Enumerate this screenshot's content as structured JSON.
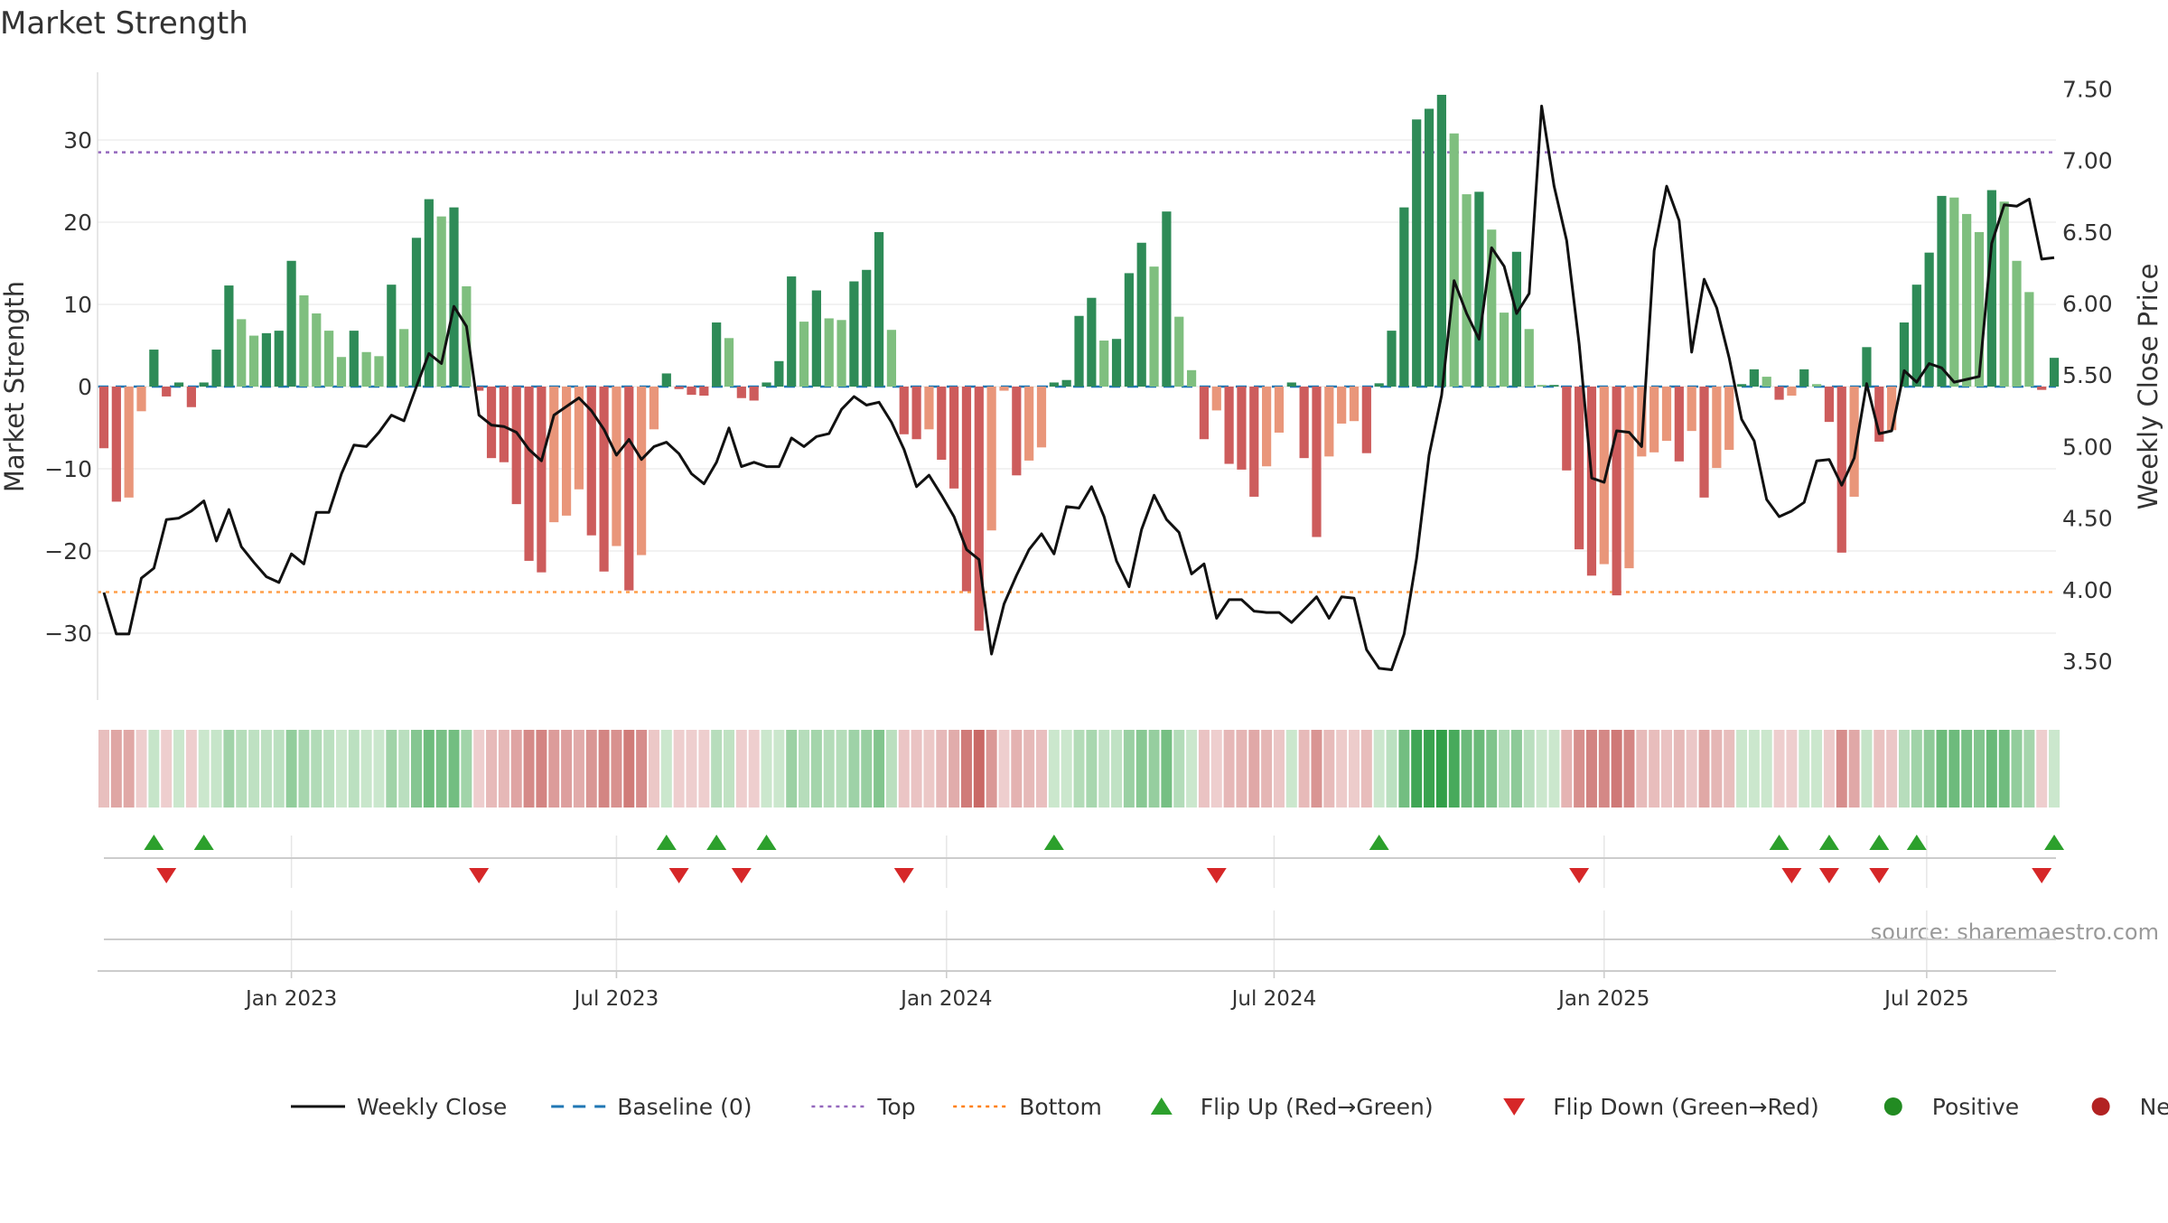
{
  "title": "Market Strength",
  "source": "source: sharemaestro.com",
  "chart_data": {
    "type": "bar+line",
    "title": "Market Strength",
    "ylabel_left": "Market Strength",
    "ylabel_right": "Weekly Close Price",
    "ylim_left": [
      -38,
      38
    ],
    "ylim_right": [
      3.2,
      7.6
    ],
    "yticks_left": [
      {
        "value": 30,
        "label": "30"
      },
      {
        "value": 20,
        "label": "20"
      },
      {
        "value": 10,
        "label": "10"
      },
      {
        "value": 0,
        "label": "0"
      },
      {
        "value": -10,
        "label": "−10"
      },
      {
        "value": -20,
        "label": "−20"
      },
      {
        "value": -30,
        "label": "−30"
      }
    ],
    "yticks_right": [
      {
        "value": 7.5,
        "label": "7.50"
      },
      {
        "value": 7.0,
        "label": "7.00"
      },
      {
        "value": 6.5,
        "label": "6.50"
      },
      {
        "value": 6.0,
        "label": "6.00"
      },
      {
        "value": 5.5,
        "label": "5.50"
      },
      {
        "value": 5.0,
        "label": "5.00"
      },
      {
        "value": 4.5,
        "label": "4.50"
      },
      {
        "value": 4.0,
        "label": "4.00"
      },
      {
        "value": 3.5,
        "label": "3.50"
      }
    ],
    "top_level": 28.5,
    "bottom_level": -25,
    "baseline": 0,
    "x_start_week": 0,
    "x_ticks": [
      {
        "label": "Jan 2023",
        "week": 15
      },
      {
        "label": "Jul 2023",
        "week": 41
      },
      {
        "label": "Jan 2024",
        "week": 67.4
      },
      {
        "label": "Jul 2024",
        "week": 93.6
      },
      {
        "label": "Jan 2025",
        "week": 120
      },
      {
        "label": "Jul 2025",
        "week": 145.8
      }
    ],
    "strength": [
      -7.5,
      -14,
      -13.5,
      -3,
      4.5,
      -1.2,
      0.5,
      -2.5,
      0.5,
      4.5,
      12.3,
      8.2,
      6.2,
      6.5,
      6.8,
      15.3,
      11.1,
      8.9,
      6.8,
      3.6,
      6.8,
      4.2,
      3.7,
      12.4,
      7.0,
      18.1,
      22.8,
      20.7,
      21.8,
      12.2,
      -0.5,
      -8.7,
      -9.2,
      -14.3,
      -21.2,
      -22.6,
      -16.5,
      -15.7,
      -12.5,
      -18.1,
      -22.5,
      -19.4,
      -24.8,
      -20.5,
      -5.2,
      1.6,
      -0.3,
      -1.0,
      -1.1,
      7.8,
      5.9,
      -1.4,
      -1.7,
      0.5,
      3.1,
      13.4,
      7.9,
      11.7,
      8.3,
      8.1,
      12.8,
      14.2,
      18.8,
      6.9,
      -5.8,
      -6.4,
      -5.2,
      -8.9,
      -12.4,
      -24.9,
      -29.7,
      -17.5,
      -0.5,
      -10.8,
      -9.0,
      -7.4,
      0.5,
      0.8,
      8.6,
      10.8,
      5.6,
      5.8,
      13.8,
      17.5,
      14.6,
      21.3,
      8.5,
      2.0,
      -6.4,
      -2.9,
      -9.4,
      -10.1,
      -13.4,
      -9.7,
      -5.6,
      0.5,
      -8.7,
      -18.3,
      -8.5,
      -4.5,
      -4.2,
      -8.1,
      0.4,
      6.8,
      21.8,
      32.5,
      33.8,
      35.5,
      30.8,
      23.4,
      23.7,
      19.1,
      9.0,
      16.4,
      7.0,
      0.2,
      0.2,
      -10.2,
      -19.8,
      -23.0,
      -21.6,
      -25.4,
      -22.1,
      -8.5,
      -8.0,
      -6.6,
      -9.1,
      -5.4,
      -13.5,
      -9.9,
      -7.7,
      0.3,
      2.1,
      1.2,
      -1.6,
      -1.1,
      2.1,
      0.3,
      -4.3,
      -20.2,
      -13.4,
      4.8,
      -6.7,
      -5.3,
      7.8,
      12.4,
      16.3,
      23.2,
      23.0,
      21.0,
      18.8,
      23.9,
      22.5,
      15.3,
      11.5,
      -0.4,
      3.5
    ],
    "close_points": [
      [
        0,
        3.98
      ],
      [
        1,
        3.69
      ],
      [
        2,
        3.69
      ],
      [
        3,
        4.08
      ],
      [
        4,
        4.15
      ],
      [
        5,
        4.49
      ],
      [
        6,
        4.5
      ],
      [
        7,
        4.55
      ],
      [
        8,
        4.62
      ],
      [
        9,
        4.34
      ],
      [
        10,
        4.56
      ],
      [
        11,
        4.3
      ],
      [
        12,
        4.19
      ],
      [
        13,
        4.09
      ],
      [
        14,
        4.05
      ],
      [
        15,
        4.25
      ],
      [
        16,
        4.18
      ],
      [
        17,
        4.54
      ],
      [
        18,
        4.54
      ],
      [
        19,
        4.81
      ],
      [
        20,
        5.01
      ],
      [
        21,
        5.0
      ],
      [
        22,
        5.1
      ],
      [
        23,
        5.22
      ],
      [
        24,
        5.18
      ],
      [
        25,
        5.42
      ],
      [
        26,
        5.65
      ],
      [
        27,
        5.58
      ],
      [
        28,
        5.98
      ],
      [
        29,
        5.84
      ],
      [
        30,
        5.22
      ],
      [
        31,
        5.15
      ],
      [
        32,
        5.14
      ],
      [
        33,
        5.1
      ],
      [
        34,
        4.98
      ],
      [
        35,
        4.9
      ],
      [
        36,
        5.22
      ],
      [
        37,
        5.28
      ],
      [
        38,
        5.34
      ],
      [
        39,
        5.25
      ],
      [
        40,
        5.12
      ],
      [
        41,
        4.94
      ],
      [
        42,
        5.05
      ],
      [
        43,
        4.91
      ],
      [
        44,
        5.0
      ],
      [
        45,
        5.03
      ],
      [
        46,
        4.95
      ],
      [
        47,
        4.81
      ],
      [
        48,
        4.74
      ],
      [
        49,
        4.89
      ],
      [
        50,
        5.13
      ],
      [
        51,
        4.86
      ],
      [
        52,
        4.89
      ],
      [
        53,
        4.86
      ],
      [
        54,
        4.86
      ],
      [
        55,
        5.06
      ],
      [
        56,
        5.0
      ],
      [
        57,
        5.07
      ],
      [
        58,
        5.09
      ],
      [
        59,
        5.26
      ],
      [
        60,
        5.35
      ],
      [
        61,
        5.29
      ],
      [
        62,
        5.31
      ],
      [
        63,
        5.17
      ],
      [
        64,
        4.98
      ],
      [
        65,
        4.72
      ],
      [
        66,
        4.8
      ],
      [
        67,
        4.66
      ],
      [
        68,
        4.51
      ],
      [
        69,
        4.28
      ],
      [
        70,
        4.21
      ],
      [
        71,
        3.55
      ],
      [
        72,
        3.9
      ],
      [
        73,
        4.1
      ],
      [
        74,
        4.28
      ],
      [
        75,
        4.39
      ],
      [
        76,
        4.25
      ],
      [
        77,
        4.58
      ],
      [
        78,
        4.57
      ],
      [
        79,
        4.72
      ],
      [
        80,
        4.51
      ],
      [
        81,
        4.2
      ],
      [
        82,
        4.02
      ],
      [
        83,
        4.42
      ],
      [
        84,
        4.66
      ],
      [
        85,
        4.49
      ],
      [
        86,
        4.4
      ],
      [
        87,
        4.11
      ],
      [
        88,
        4.18
      ],
      [
        89,
        3.8
      ],
      [
        90,
        3.93
      ],
      [
        91,
        3.93
      ],
      [
        92,
        3.85
      ],
      [
        93,
        3.84
      ],
      [
        94,
        3.84
      ],
      [
        95,
        3.77
      ],
      [
        96,
        3.86
      ],
      [
        97,
        3.95
      ],
      [
        98,
        3.8
      ],
      [
        99,
        3.95
      ],
      [
        100,
        3.94
      ],
      [
        101,
        3.58
      ],
      [
        102,
        3.45
      ],
      [
        103,
        3.44
      ],
      [
        104,
        3.69
      ],
      [
        105,
        4.22
      ],
      [
        106,
        4.94
      ],
      [
        107,
        5.36
      ],
      [
        108,
        6.16
      ],
      [
        109,
        5.93
      ],
      [
        110,
        5.75
      ],
      [
        111,
        6.39
      ],
      [
        112,
        6.26
      ],
      [
        113,
        5.93
      ],
      [
        114,
        6.07
      ],
      [
        115,
        7.38
      ],
      [
        116,
        6.82
      ],
      [
        117,
        6.44
      ],
      [
        118,
        5.72
      ],
      [
        119,
        4.78
      ],
      [
        120,
        4.75
      ],
      [
        121,
        5.11
      ],
      [
        122,
        5.1
      ],
      [
        123,
        5.0
      ],
      [
        124,
        6.37
      ],
      [
        125,
        6.82
      ],
      [
        126,
        6.58
      ],
      [
        127,
        5.66
      ],
      [
        128,
        6.17
      ],
      [
        129,
        5.97
      ],
      [
        130,
        5.62
      ],
      [
        131,
        5.19
      ],
      [
        132,
        5.04
      ],
      [
        133,
        4.63
      ],
      [
        134,
        4.51
      ],
      [
        135,
        4.55
      ],
      [
        136,
        4.61
      ],
      [
        137,
        4.9
      ],
      [
        138,
        4.91
      ],
      [
        139,
        4.73
      ],
      [
        140,
        4.92
      ],
      [
        141,
        5.44
      ],
      [
        142,
        5.09
      ],
      [
        143,
        5.11
      ],
      [
        144,
        5.53
      ],
      [
        145,
        5.45
      ],
      [
        146,
        5.58
      ],
      [
        147,
        5.55
      ],
      [
        148,
        5.45
      ],
      [
        149,
        5.47
      ],
      [
        150,
        5.49
      ],
      [
        151,
        6.42
      ],
      [
        152,
        6.69
      ],
      [
        153,
        6.68
      ],
      [
        154,
        6.73
      ],
      [
        155,
        6.31
      ],
      [
        156,
        6.32
      ]
    ],
    "flip_up_weeks": [
      4,
      8,
      45,
      49,
      53,
      76,
      102,
      134,
      138,
      142,
      145,
      156
    ],
    "flip_down_weeks": [
      5,
      30,
      46,
      51,
      64,
      89,
      118,
      135,
      138,
      142,
      155
    ],
    "legend": [
      {
        "label": "Weekly Close",
        "kind": "line",
        "color": "#111111"
      },
      {
        "label": "Baseline (0)",
        "kind": "dash",
        "color": "#1f77b4"
      },
      {
        "label": "Top",
        "kind": "dot",
        "color": "#9467bd"
      },
      {
        "label": "Bottom",
        "kind": "dot",
        "color": "#ff7f0e"
      },
      {
        "label": "Flip Up (Red→Green)",
        "kind": "tri-up",
        "color": "#2ca02c"
      },
      {
        "label": "Flip Down (Green→Red)",
        "kind": "tri-down",
        "color": "#d62728"
      },
      {
        "label": "Positive",
        "kind": "circle",
        "color": "#228b22"
      },
      {
        "label": "Negative",
        "kind": "circle",
        "color": "#b22222"
      }
    ]
  },
  "colors": {
    "strong_green": "#2e8b57",
    "light_green": "#7fbf7f",
    "strong_red": "#cd5c5c",
    "light_red": "#e9967a"
  }
}
